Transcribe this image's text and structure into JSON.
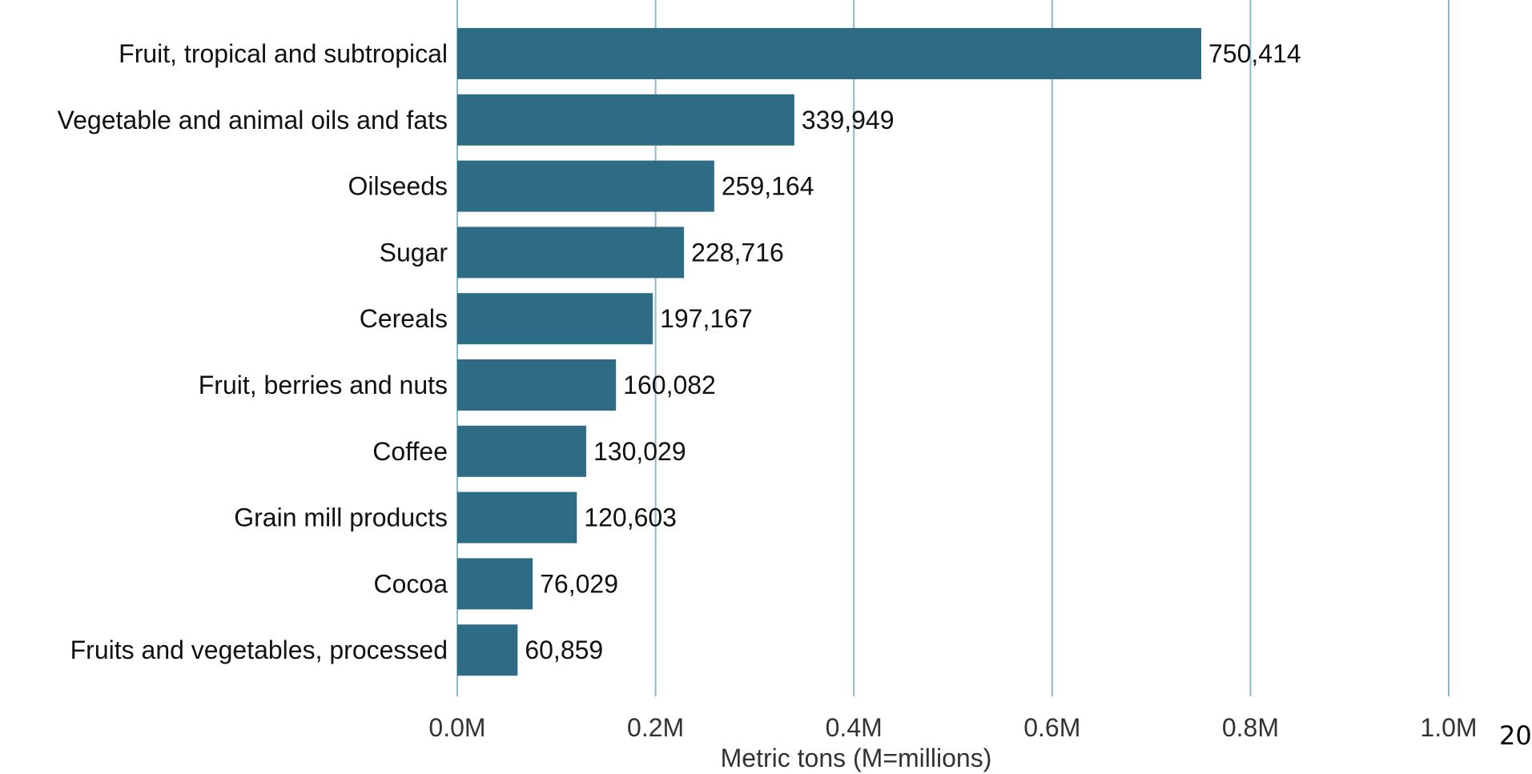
{
  "chart_data": {
    "type": "bar",
    "orientation": "horizontal",
    "categories": [
      "Fruit, tropical and subtropical",
      "Vegetable and animal oils and fats",
      "Oilseeds",
      "Sugar",
      "Cereals",
      "Fruit, berries and nuts",
      "Coffee",
      "Grain mill products",
      "Cocoa",
      "Fruits and vegetables, processed"
    ],
    "values": [
      750414,
      339949,
      259164,
      228716,
      197167,
      160082,
      130029,
      120603,
      76029,
      60859
    ],
    "value_labels": [
      "750,414",
      "339,949",
      "259,164",
      "228,716",
      "197,167",
      "160,082",
      "130,029",
      "120,603",
      "76,029",
      "60,859"
    ],
    "xlabel": "Metric tons (M=millions)",
    "ylabel": "",
    "xlim": [
      0,
      1000000
    ],
    "xticks": [
      0,
      200000,
      400000,
      600000,
      800000,
      1000000
    ],
    "xtick_labels": [
      "0.0M",
      "0.2M",
      "0.4M",
      "0.6M",
      "0.8M",
      "1.0M"
    ],
    "grid": "vertical",
    "bar_color": "#2e6b85",
    "grid_color": "#8bb8cc"
  },
  "page_number": "20"
}
